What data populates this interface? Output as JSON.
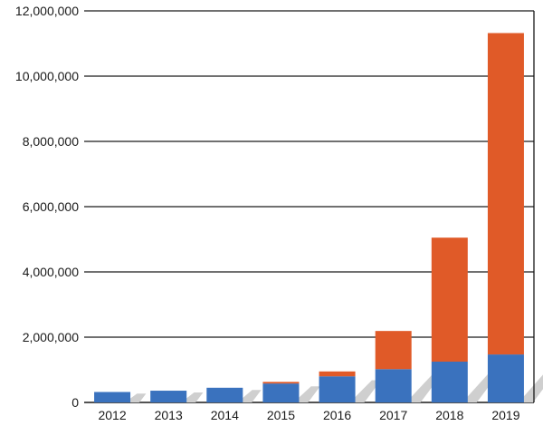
{
  "chart_data": {
    "type": "bar",
    "stacked": true,
    "categories": [
      "2012",
      "2013",
      "2014",
      "2015",
      "2016",
      "2017",
      "2018",
      "2019"
    ],
    "series": [
      {
        "color": "#3a72be",
        "values": [
          320000,
          360000,
          450000,
          580000,
          800000,
          1020000,
          1250000,
          1470000
        ]
      },
      {
        "color": "#e05a28",
        "values": [
          0,
          0,
          0,
          50000,
          150000,
          1170000,
          3800000,
          9850000
        ]
      }
    ],
    "ylim": [
      0,
      12000000
    ],
    "yticks": [
      0,
      2000000,
      4000000,
      6000000,
      8000000,
      10000000,
      12000000
    ],
    "ytick_labels": [
      "0",
      "2,000,000",
      "4,000,000",
      "6,000,000",
      "8,000,000",
      "10,000,000",
      "12,000,000"
    ],
    "grid": true,
    "shadow_color": "#cfcfcf"
  }
}
